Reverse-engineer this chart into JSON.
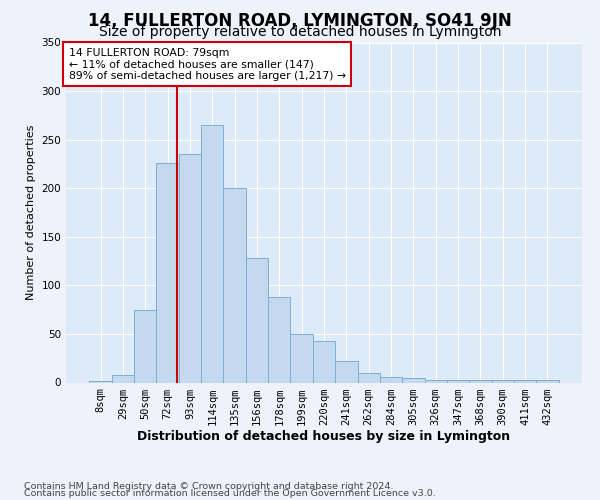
{
  "title": "14, FULLERTON ROAD, LYMINGTON, SO41 9JN",
  "subtitle": "Size of property relative to detached houses in Lymington",
  "xlabel": "Distribution of detached houses by size in Lymington",
  "ylabel": "Number of detached properties",
  "categories": [
    "8sqm",
    "29sqm",
    "50sqm",
    "72sqm",
    "93sqm",
    "114sqm",
    "135sqm",
    "156sqm",
    "178sqm",
    "199sqm",
    "220sqm",
    "241sqm",
    "262sqm",
    "284sqm",
    "305sqm",
    "326sqm",
    "347sqm",
    "368sqm",
    "390sqm",
    "411sqm",
    "432sqm"
  ],
  "values": [
    2,
    8,
    75,
    226,
    235,
    265,
    200,
    128,
    88,
    50,
    43,
    22,
    10,
    6,
    5,
    3,
    3,
    3,
    3,
    3,
    3
  ],
  "bar_color": "#c5d9ee",
  "bar_edge_color": "#7aafd4",
  "vline_pos": 3.42,
  "annotation_text": "14 FULLERTON ROAD: 79sqm\n← 11% of detached houses are smaller (147)\n89% of semi-detached houses are larger (1,217) →",
  "annotation_box_facecolor": "#ffffff",
  "annotation_box_edgecolor": "#cc0000",
  "vline_color": "#cc0000",
  "footer_line1": "Contains HM Land Registry data © Crown copyright and database right 2024.",
  "footer_line2": "Contains public sector information licensed under the Open Government Licence v3.0.",
  "fig_facecolor": "#eef2fa",
  "ax_facecolor": "#ddeaf7",
  "ylim": [
    0,
    350
  ],
  "yticks": [
    0,
    50,
    100,
    150,
    200,
    250,
    300,
    350
  ],
  "title_fontsize": 12,
  "subtitle_fontsize": 10,
  "xlabel_fontsize": 9,
  "ylabel_fontsize": 8,
  "tick_fontsize": 7.5,
  "footer_fontsize": 6.8,
  "annot_fontsize": 7.8
}
